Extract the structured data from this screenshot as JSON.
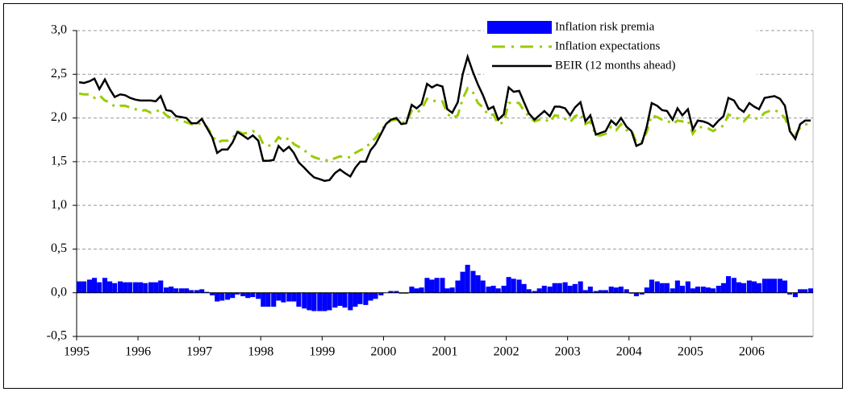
{
  "chart_data": {
    "type": "combo",
    "x": [
      1995,
      1995.08,
      1995.17,
      1995.25,
      1995.33,
      1995.42,
      1995.5,
      1995.58,
      1995.67,
      1995.75,
      1995.83,
      1995.92,
      1996,
      1996.08,
      1996.17,
      1996.25,
      1996.33,
      1996.42,
      1996.5,
      1996.58,
      1996.67,
      1996.75,
      1996.83,
      1996.92,
      1997,
      1997.08,
      1997.17,
      1997.25,
      1997.33,
      1997.42,
      1997.5,
      1997.58,
      1997.67,
      1997.75,
      1997.83,
      1997.92,
      1998,
      1998.08,
      1998.17,
      1998.25,
      1998.33,
      1998.42,
      1998.5,
      1998.58,
      1998.67,
      1998.75,
      1998.83,
      1998.92,
      1999,
      1999.08,
      1999.17,
      1999.25,
      1999.33,
      1999.42,
      1999.5,
      1999.58,
      1999.67,
      1999.75,
      1999.83,
      1999.92,
      2000,
      2000.08,
      2000.17,
      2000.25,
      2000.33,
      2000.42,
      2000.5,
      2000.58,
      2000.67,
      2000.75,
      2000.83,
      2000.92,
      2001,
      2001.08,
      2001.17,
      2001.25,
      2001.33,
      2001.42,
      2001.5,
      2001.58,
      2001.67,
      2001.75,
      2001.83,
      2001.92,
      2002,
      2002.08,
      2002.17,
      2002.25,
      2002.33,
      2002.42,
      2002.5,
      2002.58,
      2002.67,
      2002.75,
      2002.83,
      2002.92,
      2003,
      2003.08,
      2003.17,
      2003.25,
      2003.33,
      2003.42,
      2003.5,
      2003.58,
      2003.67,
      2003.75,
      2003.83,
      2003.92,
      2004,
      2004.08,
      2004.17,
      2004.25,
      2004.33,
      2004.42,
      2004.5,
      2004.58,
      2004.67,
      2004.75,
      2004.83,
      2004.92,
      2005,
      2005.08,
      2005.17,
      2005.25,
      2005.33,
      2005.42,
      2005.5,
      2005.58,
      2005.67,
      2005.75,
      2005.83,
      2005.92,
      2006,
      2006.08,
      2006.17,
      2006.25,
      2006.33,
      2006.42,
      2006.5,
      2006.58,
      2006.67,
      2006.75,
      2006.83,
      2006.92
    ],
    "series": [
      {
        "name": "Inflation risk premia",
        "type": "bar",
        "color": "#0000ff",
        "values": [
          0.13,
          0.13,
          0.15,
          0.17,
          0.12,
          0.17,
          0.13,
          0.11,
          0.13,
          0.12,
          0.12,
          0.12,
          0.12,
          0.11,
          0.12,
          0.12,
          0.14,
          0.06,
          0.07,
          0.05,
          0.05,
          0.05,
          0.03,
          0.03,
          0.04,
          0.01,
          -0.03,
          -0.1,
          -0.09,
          -0.08,
          -0.06,
          -0.02,
          -0.04,
          -0.06,
          -0.05,
          -0.07,
          -0.16,
          -0.16,
          -0.16,
          -0.09,
          -0.11,
          -0.1,
          -0.1,
          -0.16,
          -0.18,
          -0.2,
          -0.21,
          -0.21,
          -0.21,
          -0.2,
          -0.17,
          -0.15,
          -0.17,
          -0.2,
          -0.16,
          -0.13,
          -0.14,
          -0.09,
          -0.07,
          -0.03,
          0.0,
          0.02,
          0.02,
          -0.01,
          -0.01,
          0.07,
          0.05,
          0.06,
          0.17,
          0.15,
          0.17,
          0.17,
          0.05,
          0.06,
          0.14,
          0.24,
          0.32,
          0.25,
          0.2,
          0.14,
          0.07,
          0.08,
          0.05,
          0.08,
          0.18,
          0.16,
          0.15,
          0.1,
          0.04,
          0.02,
          0.05,
          0.08,
          0.07,
          0.11,
          0.11,
          0.12,
          0.08,
          0.1,
          0.13,
          0.03,
          0.07,
          0.02,
          0.03,
          0.03,
          0.07,
          0.06,
          0.07,
          0.04,
          -0.01,
          -0.04,
          -0.02,
          0.06,
          0.15,
          0.13,
          0.11,
          0.11,
          0.05,
          0.14,
          0.08,
          0.13,
          0.05,
          0.07,
          0.07,
          0.06,
          0.05,
          0.08,
          0.11,
          0.19,
          0.17,
          0.12,
          0.11,
          0.14,
          0.13,
          0.11,
          0.16,
          0.16,
          0.16,
          0.16,
          0.14,
          -0.02,
          -0.05,
          0.04,
          0.04,
          0.05
        ]
      },
      {
        "name": "Inflation expectations",
        "type": "line",
        "linestyle": "dashed",
        "color": "#99cc00",
        "values": [
          2.28,
          2.27,
          2.27,
          2.23,
          2.26,
          2.2,
          2.18,
          2.13,
          2.14,
          2.14,
          2.12,
          2.1,
          2.08,
          2.09,
          2.06,
          2.07,
          2.1,
          2.03,
          2.0,
          1.98,
          1.97,
          1.95,
          1.93,
          1.92,
          1.95,
          1.9,
          1.8,
          1.72,
          1.74,
          1.74,
          1.77,
          1.85,
          1.82,
          1.83,
          1.85,
          1.82,
          1.7,
          1.68,
          1.7,
          1.78,
          1.74,
          1.77,
          1.7,
          1.67,
          1.63,
          1.58,
          1.55,
          1.53,
          1.52,
          1.51,
          1.54,
          1.56,
          1.55,
          1.55,
          1.6,
          1.63,
          1.66,
          1.72,
          1.77,
          1.86,
          1.93,
          1.97,
          1.98,
          1.95,
          1.95,
          2.08,
          2.06,
          2.1,
          2.22,
          2.19,
          2.2,
          2.19,
          2.05,
          2.0,
          2.03,
          2.22,
          2.34,
          2.29,
          2.17,
          2.12,
          2.03,
          2.04,
          1.93,
          1.95,
          2.17,
          2.18,
          2.17,
          2.08,
          2.02,
          1.96,
          1.98,
          1.99,
          1.95,
          2.03,
          2.02,
          1.99,
          1.95,
          2.02,
          2.05,
          1.93,
          1.96,
          1.8,
          1.8,
          1.82,
          1.9,
          1.86,
          1.93,
          1.86,
          1.86,
          1.72,
          1.73,
          1.84,
          2.03,
          2.01,
          1.98,
          1.97,
          1.93,
          1.97,
          1.96,
          1.97,
          1.82,
          1.9,
          1.89,
          1.88,
          1.85,
          1.89,
          1.91,
          2.04,
          2.01,
          1.99,
          1.96,
          2.03,
          2.0,
          1.99,
          2.06,
          2.08,
          2.09,
          2.06,
          2.0,
          1.87,
          1.81,
          1.89,
          1.93,
          1.92
        ]
      },
      {
        "name": "BEIR (12 months ahead)",
        "type": "line",
        "linestyle": "solid",
        "color": "#000000",
        "values": [
          2.41,
          2.4,
          2.42,
          2.45,
          2.33,
          2.44,
          2.33,
          2.24,
          2.27,
          2.26,
          2.23,
          2.21,
          2.2,
          2.2,
          2.2,
          2.19,
          2.25,
          2.09,
          2.08,
          2.02,
          2.01,
          2.0,
          1.94,
          1.94,
          1.99,
          1.89,
          1.78,
          1.6,
          1.64,
          1.64,
          1.72,
          1.84,
          1.8,
          1.76,
          1.8,
          1.74,
          1.51,
          1.51,
          1.52,
          1.68,
          1.62,
          1.67,
          1.6,
          1.49,
          1.43,
          1.37,
          1.32,
          1.3,
          1.28,
          1.29,
          1.37,
          1.41,
          1.37,
          1.33,
          1.43,
          1.5,
          1.5,
          1.63,
          1.7,
          1.82,
          1.93,
          1.98,
          2.0,
          1.93,
          1.94,
          2.15,
          2.11,
          2.16,
          2.39,
          2.35,
          2.38,
          2.36,
          2.1,
          2.06,
          2.18,
          2.5,
          2.7,
          2.52,
          2.38,
          2.26,
          2.1,
          2.13,
          1.98,
          2.04,
          2.35,
          2.3,
          2.31,
          2.18,
          2.05,
          1.98,
          2.03,
          2.08,
          2.02,
          2.13,
          2.13,
          2.11,
          2.03,
          2.12,
          2.18,
          1.96,
          2.03,
          1.81,
          1.83,
          1.85,
          1.97,
          1.92,
          2.0,
          1.9,
          1.85,
          1.68,
          1.71,
          1.9,
          2.17,
          2.14,
          2.09,
          2.08,
          1.98,
          2.11,
          2.03,
          2.1,
          1.87,
          1.97,
          1.96,
          1.94,
          1.9,
          1.97,
          2.02,
          2.23,
          2.2,
          2.11,
          2.07,
          2.17,
          2.13,
          2.1,
          2.23,
          2.24,
          2.25,
          2.22,
          2.14,
          1.85,
          1.76,
          1.93,
          1.97,
          1.97
        ]
      }
    ],
    "xlim": [
      1995,
      2007
    ],
    "xticks": [
      1995,
      1996,
      1997,
      1998,
      1999,
      2000,
      2001,
      2002,
      2003,
      2004,
      2005,
      2006
    ],
    "ylim": [
      -0.5,
      3
    ],
    "yticks": [
      {
        "value": -0.5,
        "label": "-0,5"
      },
      {
        "value": 0,
        "label": "0,0"
      },
      {
        "value": 0.5,
        "label": "0,5"
      },
      {
        "value": 1,
        "label": "1,0"
      },
      {
        "value": 1.5,
        "label": "1,5"
      },
      {
        "value": 2,
        "label": "2,0"
      },
      {
        "value": 2.5,
        "label": "2,5"
      },
      {
        "value": 3,
        "label": "3,0"
      }
    ],
    "grid": true,
    "legend": "upper right"
  }
}
